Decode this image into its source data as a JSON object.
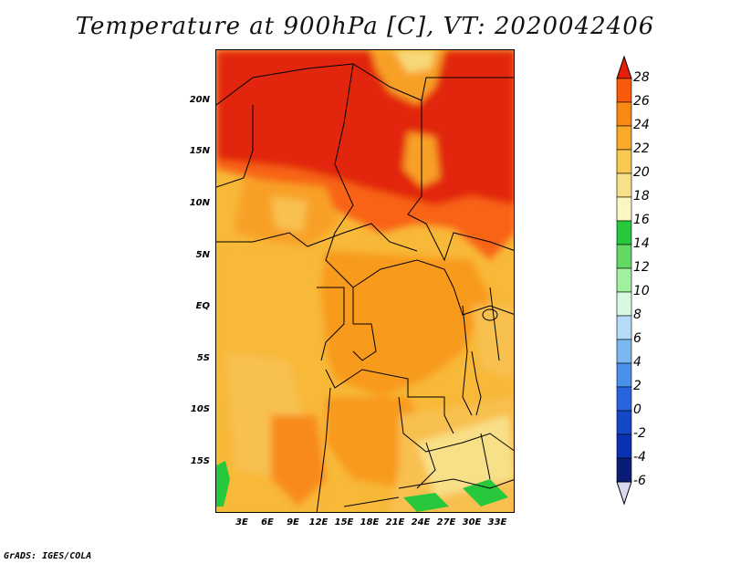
{
  "title": "Temperature at 900hPa [C], VT: 2020042406",
  "credit": "GrADS: IGES/COLA",
  "lat_ticks": [
    "20N",
    "15N",
    "10N",
    "5N",
    "EQ",
    "5S",
    "10S",
    "15S"
  ],
  "lon_ticks": [
    "3E",
    "6E",
    "9E",
    "12E",
    "15E",
    "18E",
    "21E",
    "24E",
    "27E",
    "30E",
    "33E"
  ],
  "colorbar": {
    "labels": [
      "28",
      "26",
      "24",
      "22",
      "20",
      "18",
      "16",
      "14",
      "12",
      "10",
      "8",
      "6",
      "4",
      "2",
      "0",
      "-2",
      "-4",
      "-6"
    ],
    "colors": [
      "#e81e0a",
      "#f85a0a",
      "#f88a12",
      "#f8aa28",
      "#f8c850",
      "#f8e088",
      "#f8f8c0",
      "#28c83c",
      "#64d864",
      "#a0f0a0",
      "#d8f8e0",
      "#b4dcf8",
      "#7cb8f0",
      "#4890e8",
      "#2864e0",
      "#1448c8",
      "#0a30b4",
      "#081c78",
      "#d8d8f0"
    ]
  },
  "map": {
    "region": "Central Africa",
    "lon_range": [
      0,
      35
    ],
    "lat_range": [
      -20,
      25
    ]
  }
}
